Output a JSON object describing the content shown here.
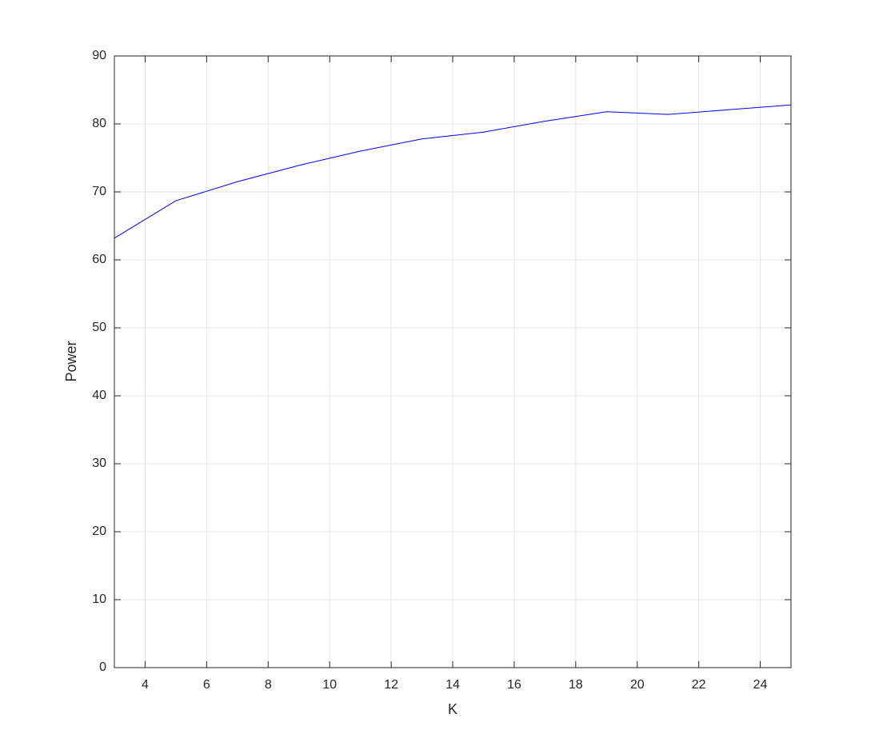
{
  "chart_data": {
    "type": "line",
    "xlabel": "K",
    "ylabel": "Power",
    "x": [
      3,
      5,
      7,
      9,
      11,
      13,
      15,
      17,
      19,
      21,
      23,
      25
    ],
    "series": [
      {
        "name": "Power",
        "color": "#0000ff",
        "values": [
          63.2,
          68.7,
          71.5,
          73.9,
          76.0,
          77.8,
          78.8,
          80.4,
          81.8,
          81.4,
          82.1,
          82.8
        ]
      }
    ],
    "xlim": [
      3,
      25
    ],
    "xticks": [
      4,
      6,
      8,
      10,
      12,
      14,
      16,
      18,
      20,
      22,
      24
    ],
    "ylim": [
      0,
      90
    ],
    "yticks": [
      0,
      10,
      20,
      30,
      40,
      50,
      60,
      70,
      80,
      90
    ],
    "grid": true
  }
}
